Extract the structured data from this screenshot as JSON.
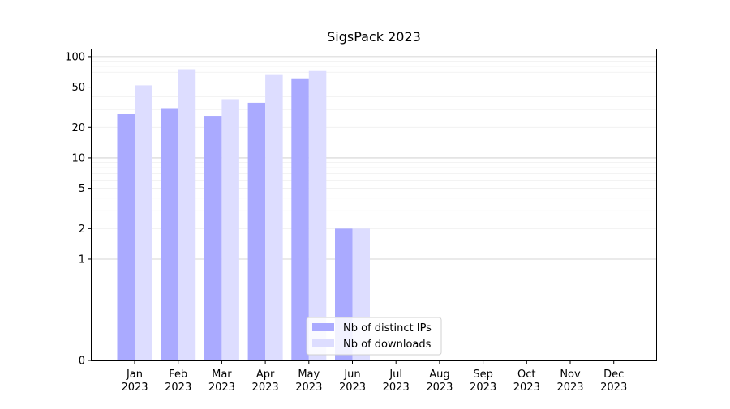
{
  "chart_data": {
    "type": "bar",
    "title": "SigsPack 2023",
    "xlabel": "",
    "ylabel": "",
    "y_scale": "symlog",
    "ylim": [
      0,
      120
    ],
    "y_ticks": [
      0,
      1,
      2,
      5,
      10,
      20,
      50,
      100
    ],
    "y_tick_labels": [
      "0",
      "1",
      "2",
      "5",
      "10",
      "20",
      "50",
      "100"
    ],
    "grid": "horizontal",
    "legend_position": "bottom-center",
    "categories": [
      "Jan\n2023",
      "Feb\n2023",
      "Mar\n2023",
      "Apr\n2023",
      "May\n2023",
      "Jun\n2023",
      "Jul\n2023",
      "Aug\n2023",
      "Sep\n2023",
      "Oct\n2023",
      "Nov\n2023",
      "Dec\n2023"
    ],
    "category_labels": [
      [
        "Jan",
        "2023"
      ],
      [
        "Feb",
        "2023"
      ],
      [
        "Mar",
        "2023"
      ],
      [
        "Apr",
        "2023"
      ],
      [
        "May",
        "2023"
      ],
      [
        "Jun",
        "2023"
      ],
      [
        "Jul",
        "2023"
      ],
      [
        "Aug",
        "2023"
      ],
      [
        "Sep",
        "2023"
      ],
      [
        "Oct",
        "2023"
      ],
      [
        "Nov",
        "2023"
      ],
      [
        "Dec",
        "2023"
      ]
    ],
    "series": [
      {
        "name": "Nb of distinct IPs",
        "color": "#aaaaff",
        "values": [
          27,
          31,
          26,
          35,
          61,
          2,
          0,
          0,
          0,
          0,
          0,
          0
        ]
      },
      {
        "name": "Nb of downloads",
        "color": "#ddddff",
        "values": [
          52,
          75,
          38,
          67,
          72,
          2,
          0,
          0,
          0,
          0,
          0,
          0
        ]
      }
    ]
  }
}
